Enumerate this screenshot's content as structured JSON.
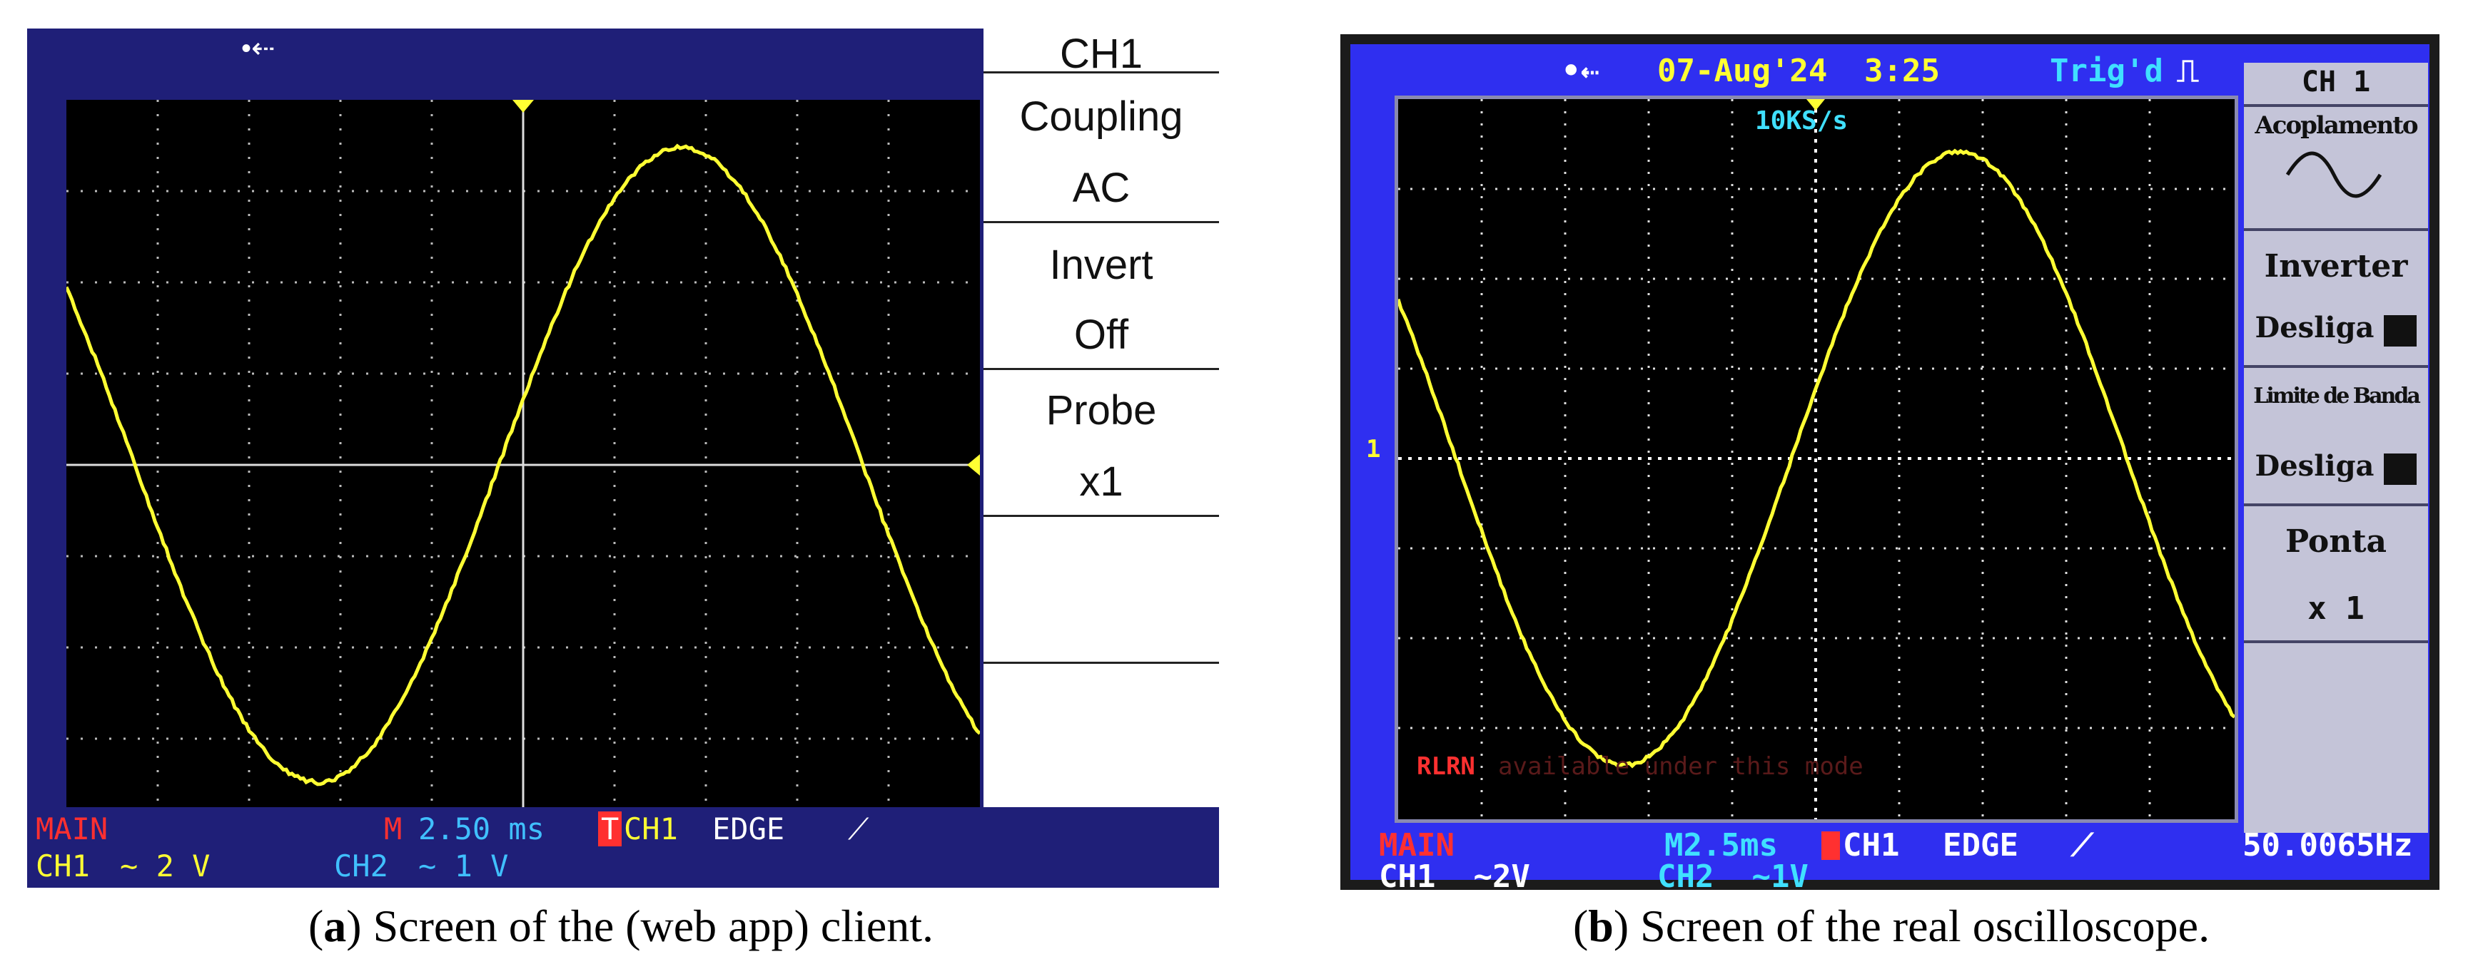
{
  "colors": {
    "trace": "#ffff33",
    "client_bar": "#1f1f78",
    "scope_screen": "#2f2ff0",
    "red": "#ff3030",
    "cyan": "#40c0ff"
  },
  "client": {
    "usb_icon": "usb-icon",
    "menu": {
      "channel": "CH1",
      "coupling_label": "Coupling",
      "coupling_value": "AC",
      "invert_label": "Invert",
      "invert_value": "Off",
      "probe_label": "Probe",
      "probe_value": "x1"
    },
    "status": {
      "main": "MAIN",
      "m_marker": "M",
      "timebase": "2.50 ms",
      "trig_marker": "T",
      "trig_source": "CH1",
      "trig_type": "EDGE",
      "ch1_label": "CH1",
      "ch1_scale": "∼ 2 V",
      "ch2_label": "CH2",
      "ch2_scale": "∼ 1 V"
    }
  },
  "scope": {
    "usb_icon": "usb-icon",
    "date": "07-Aug'24",
    "time": "3:25",
    "trig_state": "Trig'd",
    "sample_rate": "10KS/s",
    "ch_marker": "1",
    "rlrn_label": "RLRN",
    "rlrn_note": "available under this mode",
    "menu": {
      "channel": "CH 1",
      "coupling_label": "Acoplamento",
      "invert_label": "Inverter",
      "invert_value": "Desliga",
      "bandwidth_label": "Limite de Banda",
      "bandwidth_value": "Desliga",
      "probe_label": "Ponta",
      "probe_value": "x 1"
    },
    "status": {
      "main": "MAIN",
      "timebase": "M2.5ms",
      "trig_source": "CH1",
      "trig_type": "EDGE",
      "frequency": "50.0065Hz",
      "ch1": "CH1  ∼2V",
      "ch2": "CH2  ∼1V"
    }
  },
  "captions": {
    "a_label": "a",
    "a_text": "Screen of the (web app) client.",
    "b_label": "b",
    "b_text": "Screen of the real oscilloscope."
  }
}
